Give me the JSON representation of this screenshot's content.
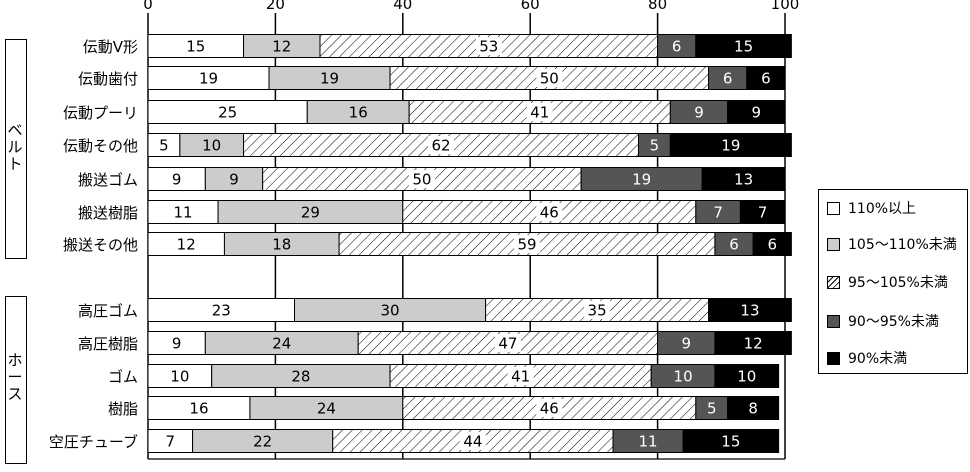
{
  "colors": {
    "s0": "#ffffff",
    "s1": "#cccccc",
    "s2": "hatch",
    "s3": "#555555",
    "s4": "#000000"
  },
  "chart_data": {
    "type": "bar",
    "orientation": "horizontal",
    "stacked": true,
    "xlim": [
      0,
      100
    ],
    "x_ticks": [
      "0",
      "20",
      "40",
      "60",
      "80",
      "100"
    ],
    "grid": true,
    "legend_placement": "right",
    "groups": [
      {
        "label": "ベルト",
        "categories": [
          "伝動V形",
          "伝動歯付",
          "伝動プーリ",
          "伝動その他",
          "搬送ゴム",
          "搬送樹脂",
          "搬送その他"
        ]
      },
      {
        "label": "ホース",
        "categories": [
          "高圧ゴム",
          "高圧樹脂",
          "ゴム",
          "樹脂",
          "空圧チューブ"
        ]
      }
    ],
    "categories": [
      "伝動V形",
      "伝動歯付",
      "伝動プーリ",
      "伝動その他",
      "搬送ゴム",
      "搬送樹脂",
      "搬送その他",
      "高圧ゴム",
      "高圧樹脂",
      "ゴム",
      "樹脂",
      "空圧チューブ"
    ],
    "series": [
      {
        "name": "110%以上",
        "values": [
          15,
          19,
          25,
          5,
          9,
          11,
          12,
          23,
          9,
          10,
          16,
          7
        ]
      },
      {
        "name": "105～110%未満",
        "values": [
          12,
          19,
          16,
          10,
          9,
          29,
          18,
          30,
          24,
          28,
          24,
          22
        ]
      },
      {
        "name": "95～105%未満",
        "values": [
          53,
          50,
          41,
          62,
          50,
          46,
          59,
          35,
          47,
          41,
          46,
          44
        ]
      },
      {
        "name": "90～95%未満",
        "values": [
          6,
          6,
          9,
          5,
          19,
          7,
          6,
          0,
          9,
          10,
          5,
          11
        ]
      },
      {
        "name": "90%未満",
        "values": [
          15,
          6,
          9,
          19,
          13,
          7,
          6,
          13,
          12,
          10,
          8,
          15
        ]
      }
    ]
  }
}
